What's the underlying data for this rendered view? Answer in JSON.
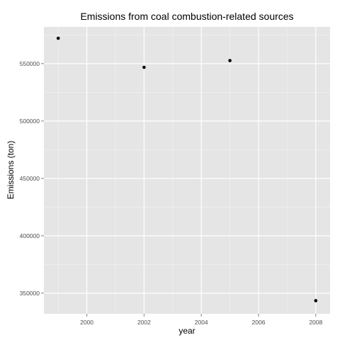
{
  "chart_data": {
    "type": "scatter",
    "title": "Emissions from coal combustion-related sources",
    "xlabel": "year",
    "ylabel": "Emissions (ton)",
    "x": [
      1999,
      2002,
      2005,
      2008
    ],
    "y": [
      572126,
      546789,
      552675,
      343432
    ],
    "xlim": [
      1998.5,
      2008.5
    ],
    "ylim": [
      332000,
      582000
    ],
    "xticks": [
      2000,
      2002,
      2004,
      2006,
      2008
    ],
    "xtick_labels": [
      "2000",
      "2002",
      "2004",
      "2006",
      "2008"
    ],
    "yticks": [
      350000,
      400000,
      450000,
      500000,
      550000
    ],
    "ytick_labels": [
      "350000",
      "400000",
      "450000",
      "500000",
      "550000"
    ],
    "grid": true,
    "colors": {
      "panel_background": "#e5e5e5",
      "grid_major": "#ffffff",
      "grid_minor": "#f2f2f2",
      "point": "#000000",
      "tick_mark": "#7f7f7f"
    }
  }
}
